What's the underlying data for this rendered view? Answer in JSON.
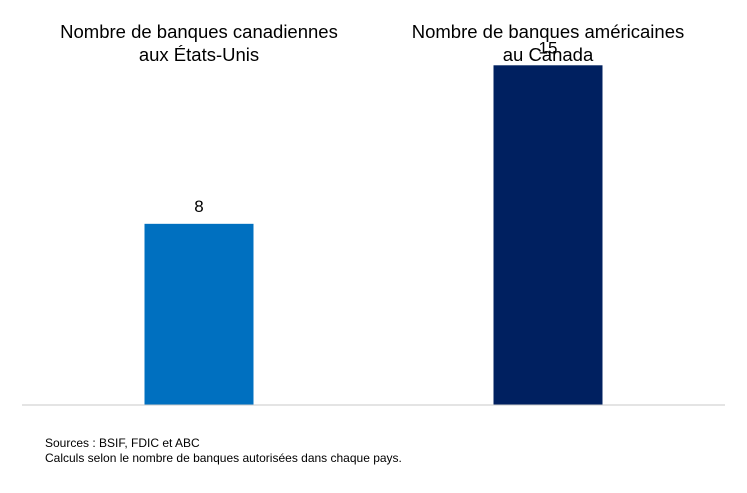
{
  "chart_data": {
    "type": "bar",
    "categories": [
      "Nombre de banques canadiennes aux États-Unis",
      "Nombre de banques américaines au Canada"
    ],
    "category_lines": [
      [
        "Nombre de banques canadiennes",
        "aux États-Unis"
      ],
      [
        "Nombre de banques américaines",
        "au Canada"
      ]
    ],
    "values": [
      8,
      15
    ],
    "value_labels": [
      "8",
      "15"
    ],
    "colors": [
      "#0070C0",
      "#002060"
    ],
    "ylim": [
      0,
      17
    ],
    "grid": false,
    "title": "",
    "xlabel": "",
    "ylabel": ""
  },
  "footnotes": {
    "sources": "Sources : BSIF, FDIC et ABC",
    "note": "Calculs selon le nombre de banques autorisées dans chaque pays."
  }
}
